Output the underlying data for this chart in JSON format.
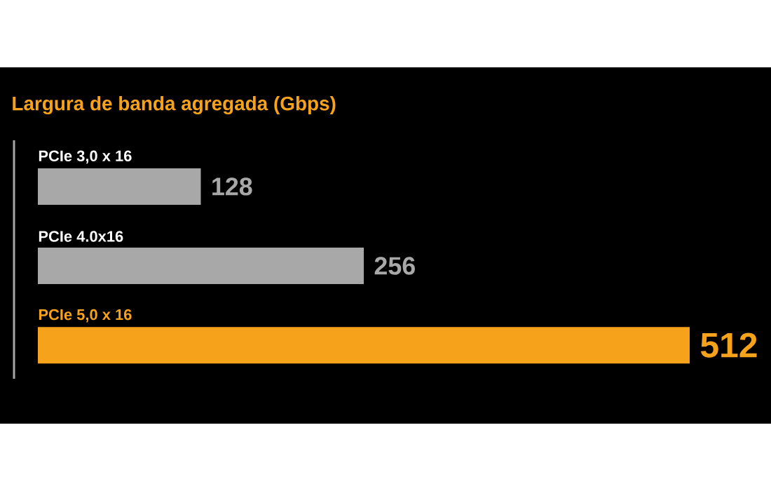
{
  "chart_data": {
    "type": "bar",
    "orientation": "horizontal",
    "title": "Largura de banda agregada (Gbps)",
    "categories": [
      "PCIe 3,0 x 16",
      "PCIe 4.0x16",
      "PCIe 5,0 x 16"
    ],
    "values": [
      128,
      256,
      512
    ],
    "colors": [
      "#a8a8a8",
      "#a8a8a8",
      "#f7a21b"
    ],
    "data_labels": true
  }
}
